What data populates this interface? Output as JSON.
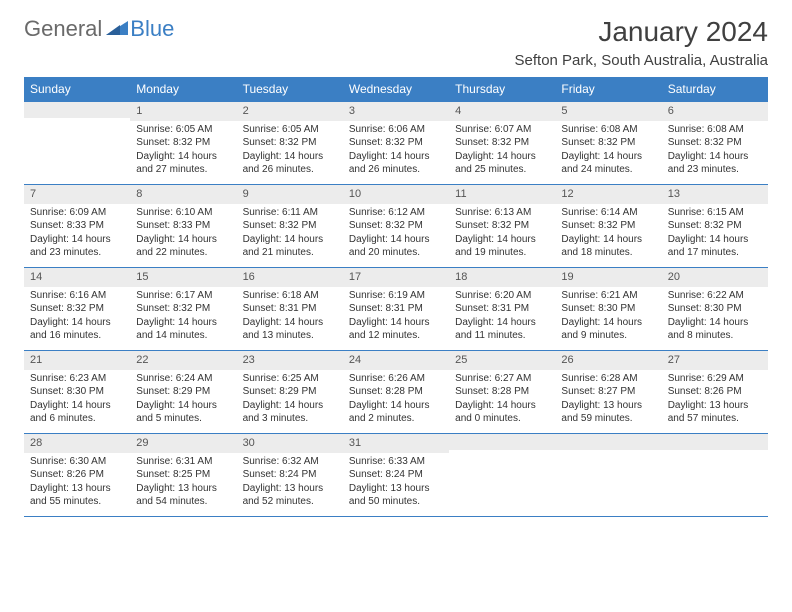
{
  "logo": {
    "general": "General",
    "blue": "Blue"
  },
  "title": "January 2024",
  "subtitle": "Sefton Park, South Australia, Australia",
  "colors": {
    "header_bg": "#3b7fc4",
    "header_text": "#ffffff",
    "daynum_bg": "#ececec",
    "body_text": "#333333",
    "title_text": "#404040",
    "logo_gray": "#6a6a6a",
    "logo_blue": "#3b7fc4",
    "border": "#3b7fc4",
    "page_bg": "#ffffff"
  },
  "typography": {
    "title_fontsize": 28,
    "subtitle_fontsize": 15,
    "weekday_fontsize": 12,
    "daynum_fontsize": 11,
    "body_fontsize": 10
  },
  "weekdays": [
    "Sunday",
    "Monday",
    "Tuesday",
    "Wednesday",
    "Thursday",
    "Friday",
    "Saturday"
  ],
  "weeks": [
    [
      {
        "num": "",
        "lines": []
      },
      {
        "num": "1",
        "lines": [
          "Sunrise: 6:05 AM",
          "Sunset: 8:32 PM",
          "Daylight: 14 hours and 27 minutes."
        ]
      },
      {
        "num": "2",
        "lines": [
          "Sunrise: 6:05 AM",
          "Sunset: 8:32 PM",
          "Daylight: 14 hours and 26 minutes."
        ]
      },
      {
        "num": "3",
        "lines": [
          "Sunrise: 6:06 AM",
          "Sunset: 8:32 PM",
          "Daylight: 14 hours and 26 minutes."
        ]
      },
      {
        "num": "4",
        "lines": [
          "Sunrise: 6:07 AM",
          "Sunset: 8:32 PM",
          "Daylight: 14 hours and 25 minutes."
        ]
      },
      {
        "num": "5",
        "lines": [
          "Sunrise: 6:08 AM",
          "Sunset: 8:32 PM",
          "Daylight: 14 hours and 24 minutes."
        ]
      },
      {
        "num": "6",
        "lines": [
          "Sunrise: 6:08 AM",
          "Sunset: 8:32 PM",
          "Daylight: 14 hours and 23 minutes."
        ]
      }
    ],
    [
      {
        "num": "7",
        "lines": [
          "Sunrise: 6:09 AM",
          "Sunset: 8:33 PM",
          "Daylight: 14 hours and 23 minutes."
        ]
      },
      {
        "num": "8",
        "lines": [
          "Sunrise: 6:10 AM",
          "Sunset: 8:33 PM",
          "Daylight: 14 hours and 22 minutes."
        ]
      },
      {
        "num": "9",
        "lines": [
          "Sunrise: 6:11 AM",
          "Sunset: 8:32 PM",
          "Daylight: 14 hours and 21 minutes."
        ]
      },
      {
        "num": "10",
        "lines": [
          "Sunrise: 6:12 AM",
          "Sunset: 8:32 PM",
          "Daylight: 14 hours and 20 minutes."
        ]
      },
      {
        "num": "11",
        "lines": [
          "Sunrise: 6:13 AM",
          "Sunset: 8:32 PM",
          "Daylight: 14 hours and 19 minutes."
        ]
      },
      {
        "num": "12",
        "lines": [
          "Sunrise: 6:14 AM",
          "Sunset: 8:32 PM",
          "Daylight: 14 hours and 18 minutes."
        ]
      },
      {
        "num": "13",
        "lines": [
          "Sunrise: 6:15 AM",
          "Sunset: 8:32 PM",
          "Daylight: 14 hours and 17 minutes."
        ]
      }
    ],
    [
      {
        "num": "14",
        "lines": [
          "Sunrise: 6:16 AM",
          "Sunset: 8:32 PM",
          "Daylight: 14 hours and 16 minutes."
        ]
      },
      {
        "num": "15",
        "lines": [
          "Sunrise: 6:17 AM",
          "Sunset: 8:32 PM",
          "Daylight: 14 hours and 14 minutes."
        ]
      },
      {
        "num": "16",
        "lines": [
          "Sunrise: 6:18 AM",
          "Sunset: 8:31 PM",
          "Daylight: 14 hours and 13 minutes."
        ]
      },
      {
        "num": "17",
        "lines": [
          "Sunrise: 6:19 AM",
          "Sunset: 8:31 PM",
          "Daylight: 14 hours and 12 minutes."
        ]
      },
      {
        "num": "18",
        "lines": [
          "Sunrise: 6:20 AM",
          "Sunset: 8:31 PM",
          "Daylight: 14 hours and 11 minutes."
        ]
      },
      {
        "num": "19",
        "lines": [
          "Sunrise: 6:21 AM",
          "Sunset: 8:30 PM",
          "Daylight: 14 hours and 9 minutes."
        ]
      },
      {
        "num": "20",
        "lines": [
          "Sunrise: 6:22 AM",
          "Sunset: 8:30 PM",
          "Daylight: 14 hours and 8 minutes."
        ]
      }
    ],
    [
      {
        "num": "21",
        "lines": [
          "Sunrise: 6:23 AM",
          "Sunset: 8:30 PM",
          "Daylight: 14 hours and 6 minutes."
        ]
      },
      {
        "num": "22",
        "lines": [
          "Sunrise: 6:24 AM",
          "Sunset: 8:29 PM",
          "Daylight: 14 hours and 5 minutes."
        ]
      },
      {
        "num": "23",
        "lines": [
          "Sunrise: 6:25 AM",
          "Sunset: 8:29 PM",
          "Daylight: 14 hours and 3 minutes."
        ]
      },
      {
        "num": "24",
        "lines": [
          "Sunrise: 6:26 AM",
          "Sunset: 8:28 PM",
          "Daylight: 14 hours and 2 minutes."
        ]
      },
      {
        "num": "25",
        "lines": [
          "Sunrise: 6:27 AM",
          "Sunset: 8:28 PM",
          "Daylight: 14 hours and 0 minutes."
        ]
      },
      {
        "num": "26",
        "lines": [
          "Sunrise: 6:28 AM",
          "Sunset: 8:27 PM",
          "Daylight: 13 hours and 59 minutes."
        ]
      },
      {
        "num": "27",
        "lines": [
          "Sunrise: 6:29 AM",
          "Sunset: 8:26 PM",
          "Daylight: 13 hours and 57 minutes."
        ]
      }
    ],
    [
      {
        "num": "28",
        "lines": [
          "Sunrise: 6:30 AM",
          "Sunset: 8:26 PM",
          "Daylight: 13 hours and 55 minutes."
        ]
      },
      {
        "num": "29",
        "lines": [
          "Sunrise: 6:31 AM",
          "Sunset: 8:25 PM",
          "Daylight: 13 hours and 54 minutes."
        ]
      },
      {
        "num": "30",
        "lines": [
          "Sunrise: 6:32 AM",
          "Sunset: 8:24 PM",
          "Daylight: 13 hours and 52 minutes."
        ]
      },
      {
        "num": "31",
        "lines": [
          "Sunrise: 6:33 AM",
          "Sunset: 8:24 PM",
          "Daylight: 13 hours and 50 minutes."
        ]
      },
      {
        "num": "",
        "lines": []
      },
      {
        "num": "",
        "lines": []
      },
      {
        "num": "",
        "lines": []
      }
    ]
  ]
}
